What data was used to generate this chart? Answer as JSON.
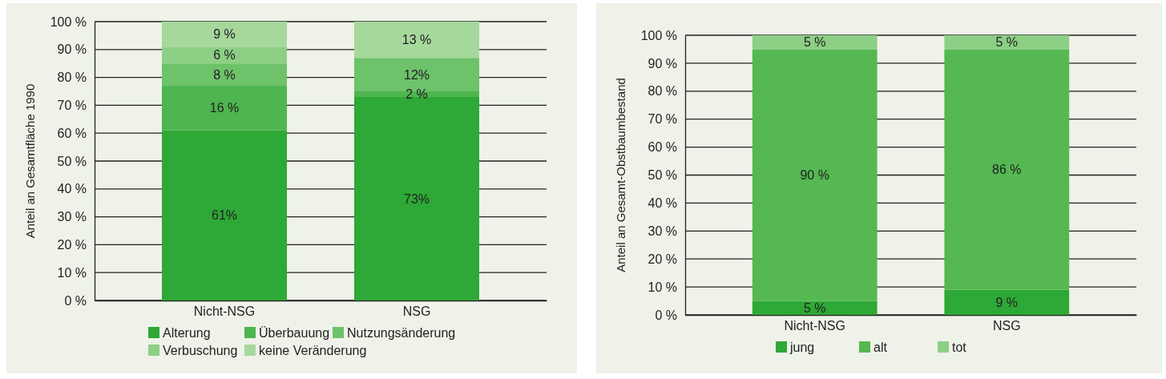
{
  "chart_data": [
    {
      "type": "bar",
      "stacked": true,
      "ylabel": "Anteil an Gesamtfläche 1990",
      "categories": [
        "Nicht-NSG",
        "NSG"
      ],
      "ylim": [
        0,
        100
      ],
      "yticks": [
        {
          "value": 0,
          "label": "0 %"
        },
        {
          "value": 10,
          "label": "10 %"
        },
        {
          "value": 20,
          "label": "20 %"
        },
        {
          "value": 30,
          "label": "30 %"
        },
        {
          "value": 40,
          "label": "40 %"
        },
        {
          "value": 50,
          "label": "50 %"
        },
        {
          "value": 60,
          "label": "60 %"
        },
        {
          "value": 70,
          "label": "70 %"
        },
        {
          "value": 80,
          "label": "80 %"
        },
        {
          "value": 90,
          "label": "90 %"
        },
        {
          "value": 100,
          "label": "100 %"
        }
      ],
      "grid": "y",
      "legend": "bottom",
      "series": [
        {
          "name": "Alterung",
          "color": "#2ea836",
          "values": [
            61,
            73
          ],
          "value_labels": [
            "61%",
            "73%"
          ]
        },
        {
          "name": "Überbauung",
          "color": "#4eb550",
          "values": [
            16,
            2
          ],
          "value_labels": [
            "16 %",
            "2 %"
          ]
        },
        {
          "name": "Nutzungsänderung",
          "color": "#6ec26a",
          "values": [
            8,
            12
          ],
          "value_labels": [
            "8 %",
            "12%"
          ]
        },
        {
          "name": "Verbuschung",
          "color": "#8ccf85",
          "values": [
            6,
            null
          ],
          "value_labels": [
            "6 %",
            null
          ]
        },
        {
          "name": "keine Veränderung",
          "color": "#a6d89c",
          "values": [
            9,
            13
          ],
          "value_labels": [
            "9 %",
            "13 %"
          ]
        }
      ]
    },
    {
      "type": "bar",
      "stacked": true,
      "ylabel": "Anteil an Gesamt-Obstbaumbestand",
      "categories": [
        "Nicht-NSG",
        "NSG"
      ],
      "ylim": [
        0,
        100
      ],
      "yticks": [
        {
          "value": 0,
          "label": "0 %"
        },
        {
          "value": 10,
          "label": "10 %"
        },
        {
          "value": 20,
          "label": "20 %"
        },
        {
          "value": 30,
          "label": "30 %"
        },
        {
          "value": 40,
          "label": "40 %"
        },
        {
          "value": 50,
          "label": "50 %"
        },
        {
          "value": 60,
          "label": "60 %"
        },
        {
          "value": 70,
          "label": "70 %"
        },
        {
          "value": 80,
          "label": "80 %"
        },
        {
          "value": 90,
          "label": "90 %"
        },
        {
          "value": 100,
          "label": "100 %"
        }
      ],
      "grid": "y",
      "legend": "bottom",
      "series": [
        {
          "name": "jung",
          "color": "#2ea836",
          "values": [
            5,
            9
          ],
          "value_labels": [
            "5 %",
            "9 %"
          ]
        },
        {
          "name": "alt",
          "color": "#55b852",
          "values": [
            90,
            86
          ],
          "value_labels": [
            "90 %",
            "86 %"
          ]
        },
        {
          "name": "tot",
          "color": "#8ccf85",
          "values": [
            5,
            5
          ],
          "value_labels": [
            "5 %",
            "5 %"
          ]
        }
      ]
    }
  ]
}
